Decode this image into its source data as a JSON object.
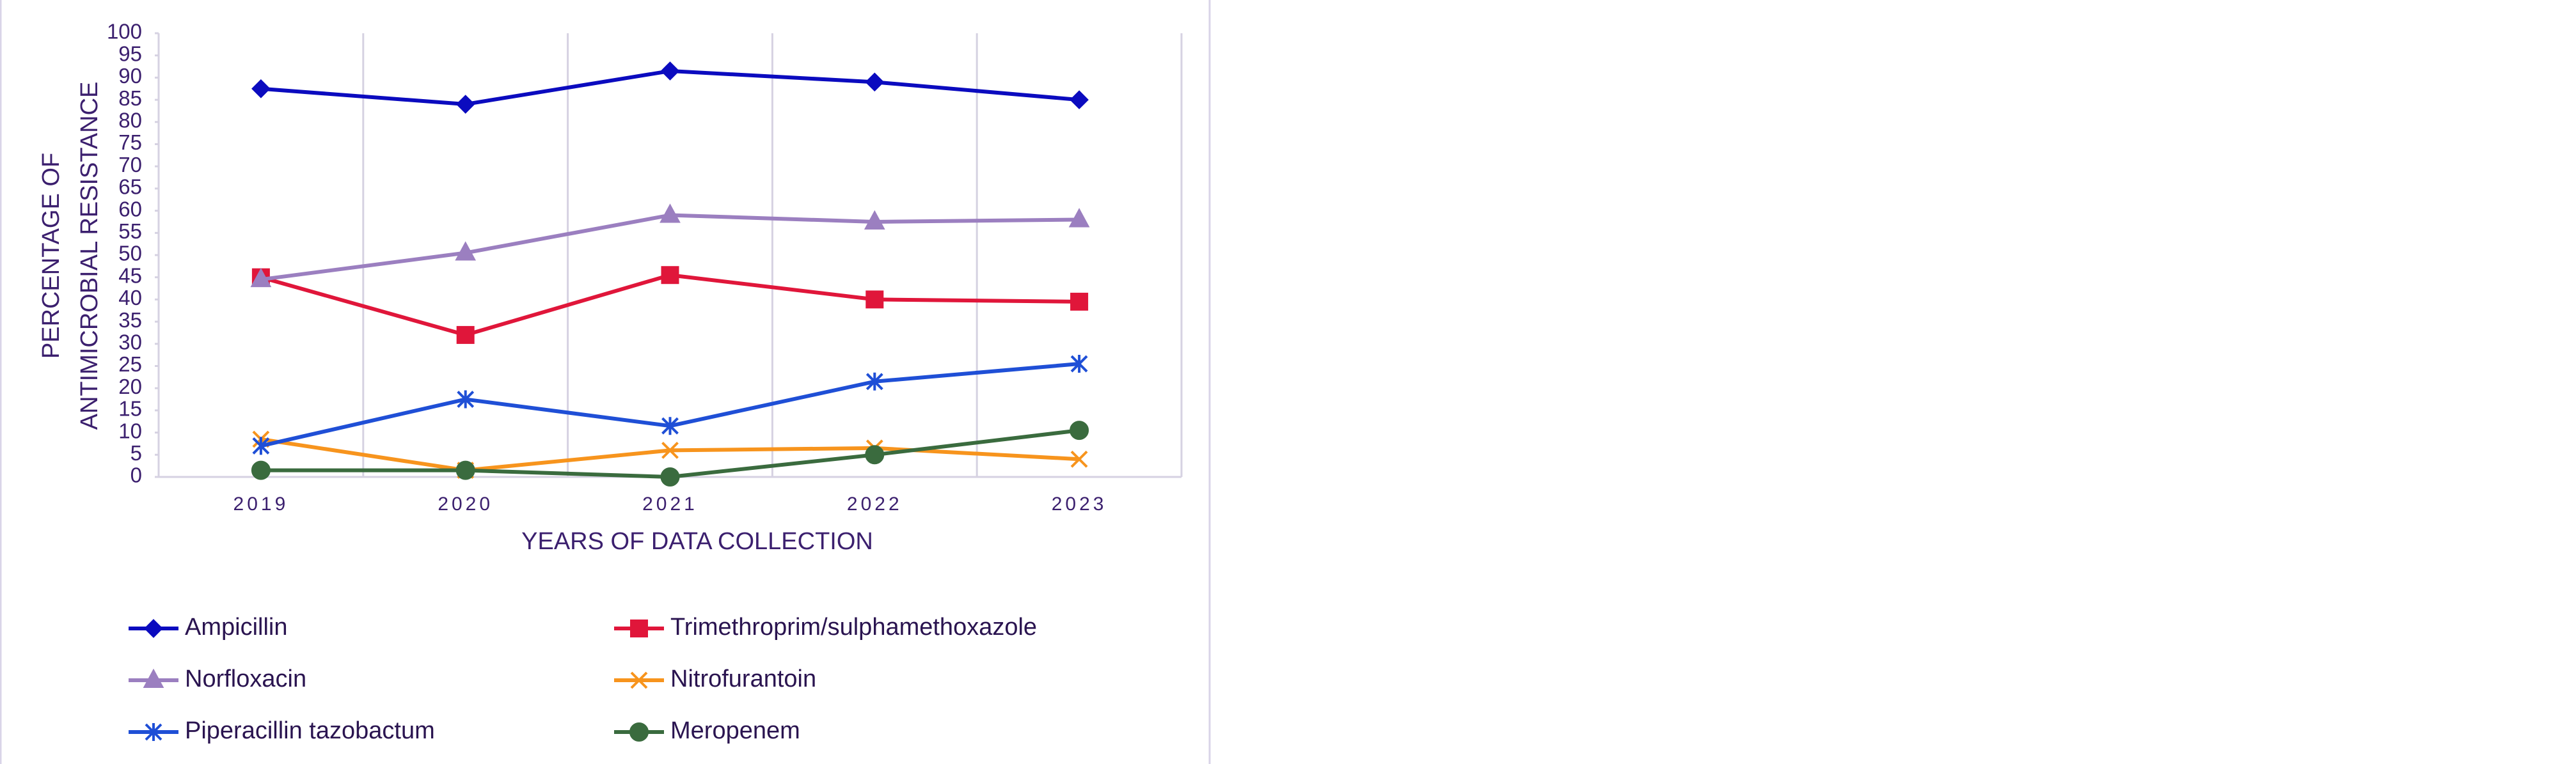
{
  "chart_data": {
    "type": "line",
    "y_label": [
      "PERCENTAGE OF",
      "ANTIMICROBIAL RESISTANCE"
    ],
    "x_label": "YEARS OF DATA COLLECTION",
    "categories": [
      "2019",
      "2020",
      "2021",
      "2022",
      "2023"
    ],
    "ylim": [
      0,
      100
    ],
    "yticks": [
      0,
      5,
      10,
      15,
      20,
      25,
      30,
      35,
      40,
      45,
      50,
      55,
      60,
      65,
      70,
      75,
      80,
      85,
      90,
      95,
      100
    ],
    "grid": true,
    "legend": "bottom",
    "series": [
      {
        "name": "Ampicillin",
        "color": "#0b0bbf",
        "marker": "diamond",
        "values": [
          87.5,
          84,
          91.5,
          89,
          85
        ]
      },
      {
        "name": "Trimethroprim/sulphamethoxazole",
        "color": "#e0163a",
        "marker": "square",
        "values": [
          45,
          32,
          45.5,
          40,
          39.5
        ]
      },
      {
        "name": "Norfloxacin",
        "color": "#9b7fc0",
        "marker": "triangle",
        "values": [
          44.5,
          50.5,
          59,
          57.5,
          58
        ]
      },
      {
        "name": "Nitrofurantoin",
        "color": "#f7941d",
        "marker": "x",
        "values": [
          8.5,
          1.5,
          6,
          6.5,
          4
        ]
      },
      {
        "name": "Piperacillin tazobactum",
        "color": "#1f4fd6",
        "marker": "asterisk",
        "values": [
          7,
          17.5,
          11.5,
          21.5,
          25.5
        ]
      },
      {
        "name": "Meropenem",
        "color": "#3a6b3e",
        "marker": "circle",
        "values": [
          1.5,
          1.5,
          0,
          5,
          10.5
        ]
      }
    ]
  }
}
